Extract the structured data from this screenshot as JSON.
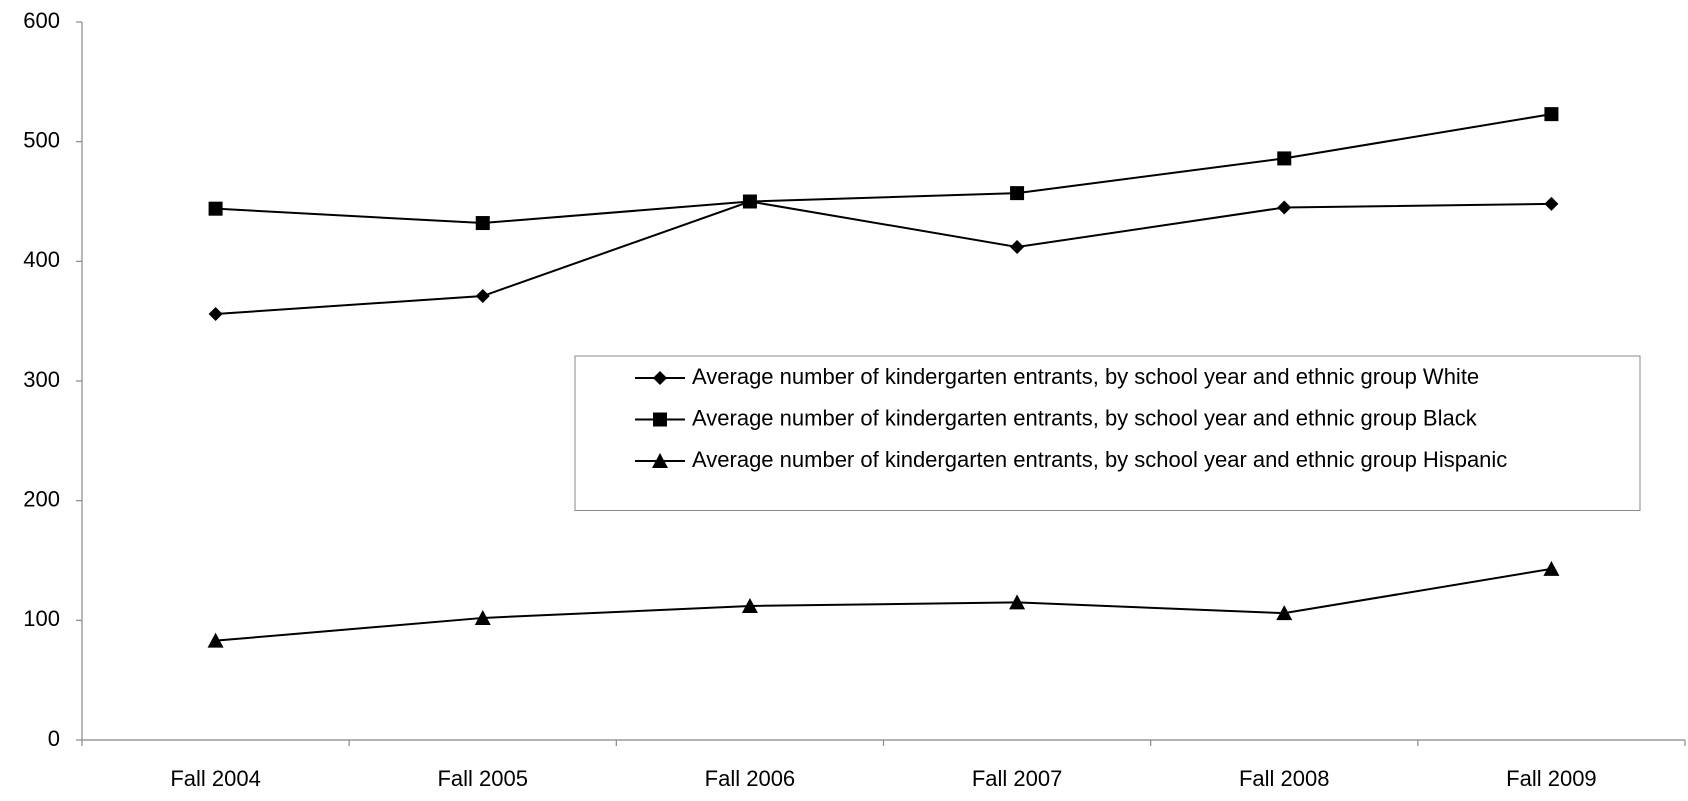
{
  "chart_data": {
    "type": "line",
    "categories": [
      "Fall 2004",
      "Fall 2005",
      "Fall 2006",
      "Fall 2007",
      "Fall 2008",
      "Fall 2009"
    ],
    "series": [
      {
        "name": "Average number of kindergarten entrants, by school year and ethnic group White",
        "color": "#000000",
        "marker": "diamond",
        "values": [
          356,
          371,
          450,
          412,
          445,
          448
        ]
      },
      {
        "name": "Average number of kindergarten entrants, by school year and ethnic group Black",
        "color": "#000000",
        "marker": "square",
        "values": [
          444,
          432,
          450,
          457,
          486,
          523
        ]
      },
      {
        "name": "Average number of kindergarten entrants, by school year and ethnic group Hispanic",
        "color": "#000000",
        "marker": "triangle",
        "values": [
          83,
          102,
          112,
          115,
          106,
          143
        ]
      }
    ],
    "ylim": [
      0,
      600
    ],
    "yticks": [
      0,
      100,
      200,
      300,
      400,
      500,
      600
    ],
    "grid": false
  }
}
